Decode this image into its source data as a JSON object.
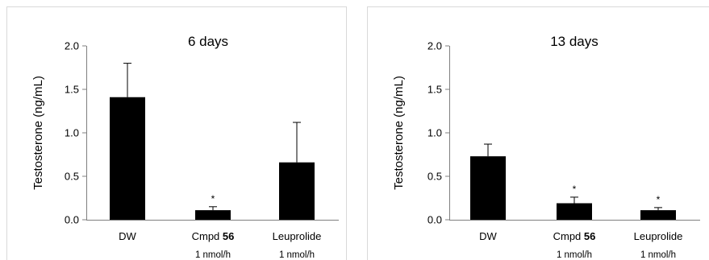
{
  "chart_data": [
    {
      "type": "bar",
      "title": "6 days",
      "xlabel": "",
      "ylabel": "Testosterone (ng/mL)",
      "ylim": [
        0,
        2.0
      ],
      "yticks": [
        "0.0",
        "0.5",
        "1.0",
        "1.5",
        "2.0"
      ],
      "grid": false,
      "legend": "none",
      "bar_color": "#000000",
      "categories": [
        {
          "label": "DW",
          "label_bold": "",
          "sublabel": ""
        },
        {
          "label": "Cmpd ",
          "label_bold": "56",
          "sublabel": "1 nmol/h"
        },
        {
          "label": "Leuprolide",
          "label_bold": "",
          "sublabel": "1 nmol/h"
        }
      ],
      "values": [
        1.41,
        0.11,
        0.66
      ],
      "errors": [
        0.39,
        0.04,
        0.46
      ],
      "significance": [
        "",
        "*",
        ""
      ]
    },
    {
      "type": "bar",
      "title": "13 days",
      "xlabel": "",
      "ylabel": "Testosterone (ng/mL)",
      "ylim": [
        0,
        2.0
      ],
      "yticks": [
        "0.0",
        "0.5",
        "1.0",
        "1.5",
        "2.0"
      ],
      "grid": false,
      "legend": "none",
      "bar_color": "#000000",
      "categories": [
        {
          "label": "DW",
          "label_bold": "",
          "sublabel": ""
        },
        {
          "label": "Cmpd ",
          "label_bold": "56",
          "sublabel": "1 nmol/h"
        },
        {
          "label": "Leuprolide",
          "label_bold": "",
          "sublabel": "1 nmol/h"
        }
      ],
      "values": [
        0.73,
        0.19,
        0.11
      ],
      "errors": [
        0.14,
        0.07,
        0.03
      ],
      "significance": [
        "",
        "*",
        "*"
      ]
    }
  ]
}
